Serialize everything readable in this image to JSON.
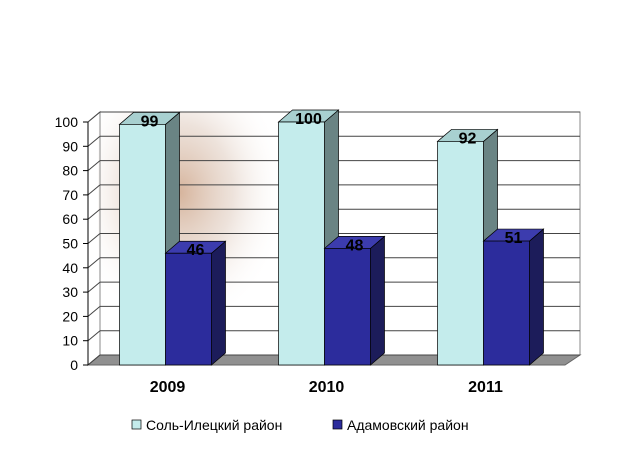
{
  "chart_data": {
    "type": "bar3d",
    "categories": [
      "2009",
      "2010",
      "2011"
    ],
    "series": [
      {
        "name": "Соль-Илецкий район",
        "color": "#c4ecec",
        "values": [
          99,
          100,
          92
        ]
      },
      {
        "name": "Адамовский район",
        "color": "#2c2c9c",
        "values": [
          46,
          48,
          51
        ]
      }
    ],
    "ylim": [
      0,
      100
    ],
    "yticks": [
      0,
      10,
      20,
      30,
      40,
      50,
      60,
      70,
      80,
      90,
      100
    ],
    "grid": true,
    "legend": "bottom"
  }
}
